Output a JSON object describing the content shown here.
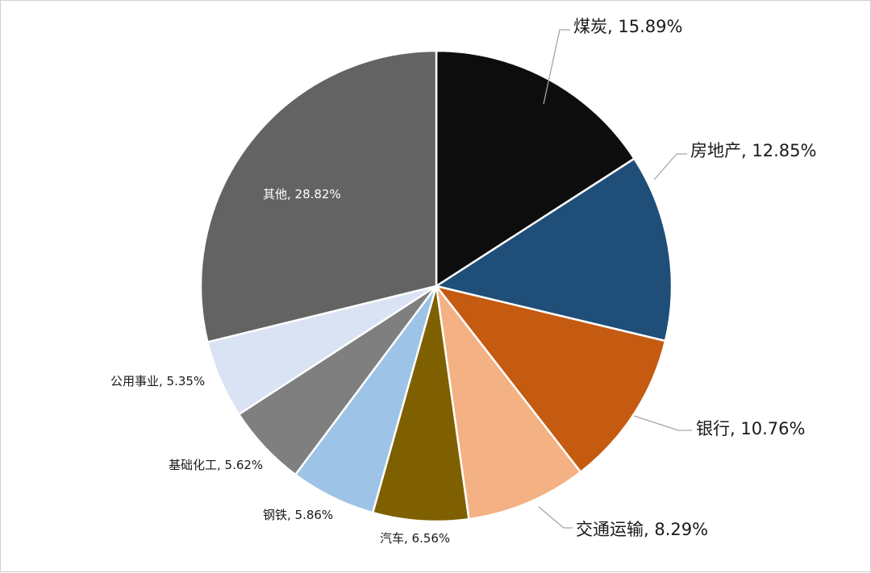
{
  "chart_data": {
    "type": "pie",
    "start": "12 o'clock, clockwise",
    "slices": [
      {
        "label": "煤炭, 15.89%",
        "name": "煤炭",
        "value": 15.89,
        "color": "#0d0d0d"
      },
      {
        "label": "房地产, 12.85%",
        "name": "房地产",
        "value": 12.85,
        "color": "#1f4e79"
      },
      {
        "label": "银行, 10.76%",
        "name": "银行",
        "value": 10.76,
        "color": "#c55a11"
      },
      {
        "label": "交通运输, 8.29%",
        "name": "交通运输",
        "value": 8.29,
        "color": "#f4b183"
      },
      {
        "label": "汽车, 6.56%",
        "name": "汽车",
        "value": 6.56,
        "color": "#7f6000"
      },
      {
        "label": "钢铁, 5.86%",
        "name": "钢铁",
        "value": 5.86,
        "color": "#9dc3e6"
      },
      {
        "label": "基础化工, 5.62%",
        "name": "基础化工",
        "value": 5.62,
        "color": "#7f7f7f"
      },
      {
        "label": "公用事业, 5.35%",
        "name": "公用事业",
        "value": 5.35,
        "color": "#dae3f3"
      },
      {
        "label": "其他, 28.82%",
        "name": "其他",
        "value": 28.82,
        "color": "#636363"
      }
    ],
    "leader_line_color": "#a6a6a6"
  }
}
